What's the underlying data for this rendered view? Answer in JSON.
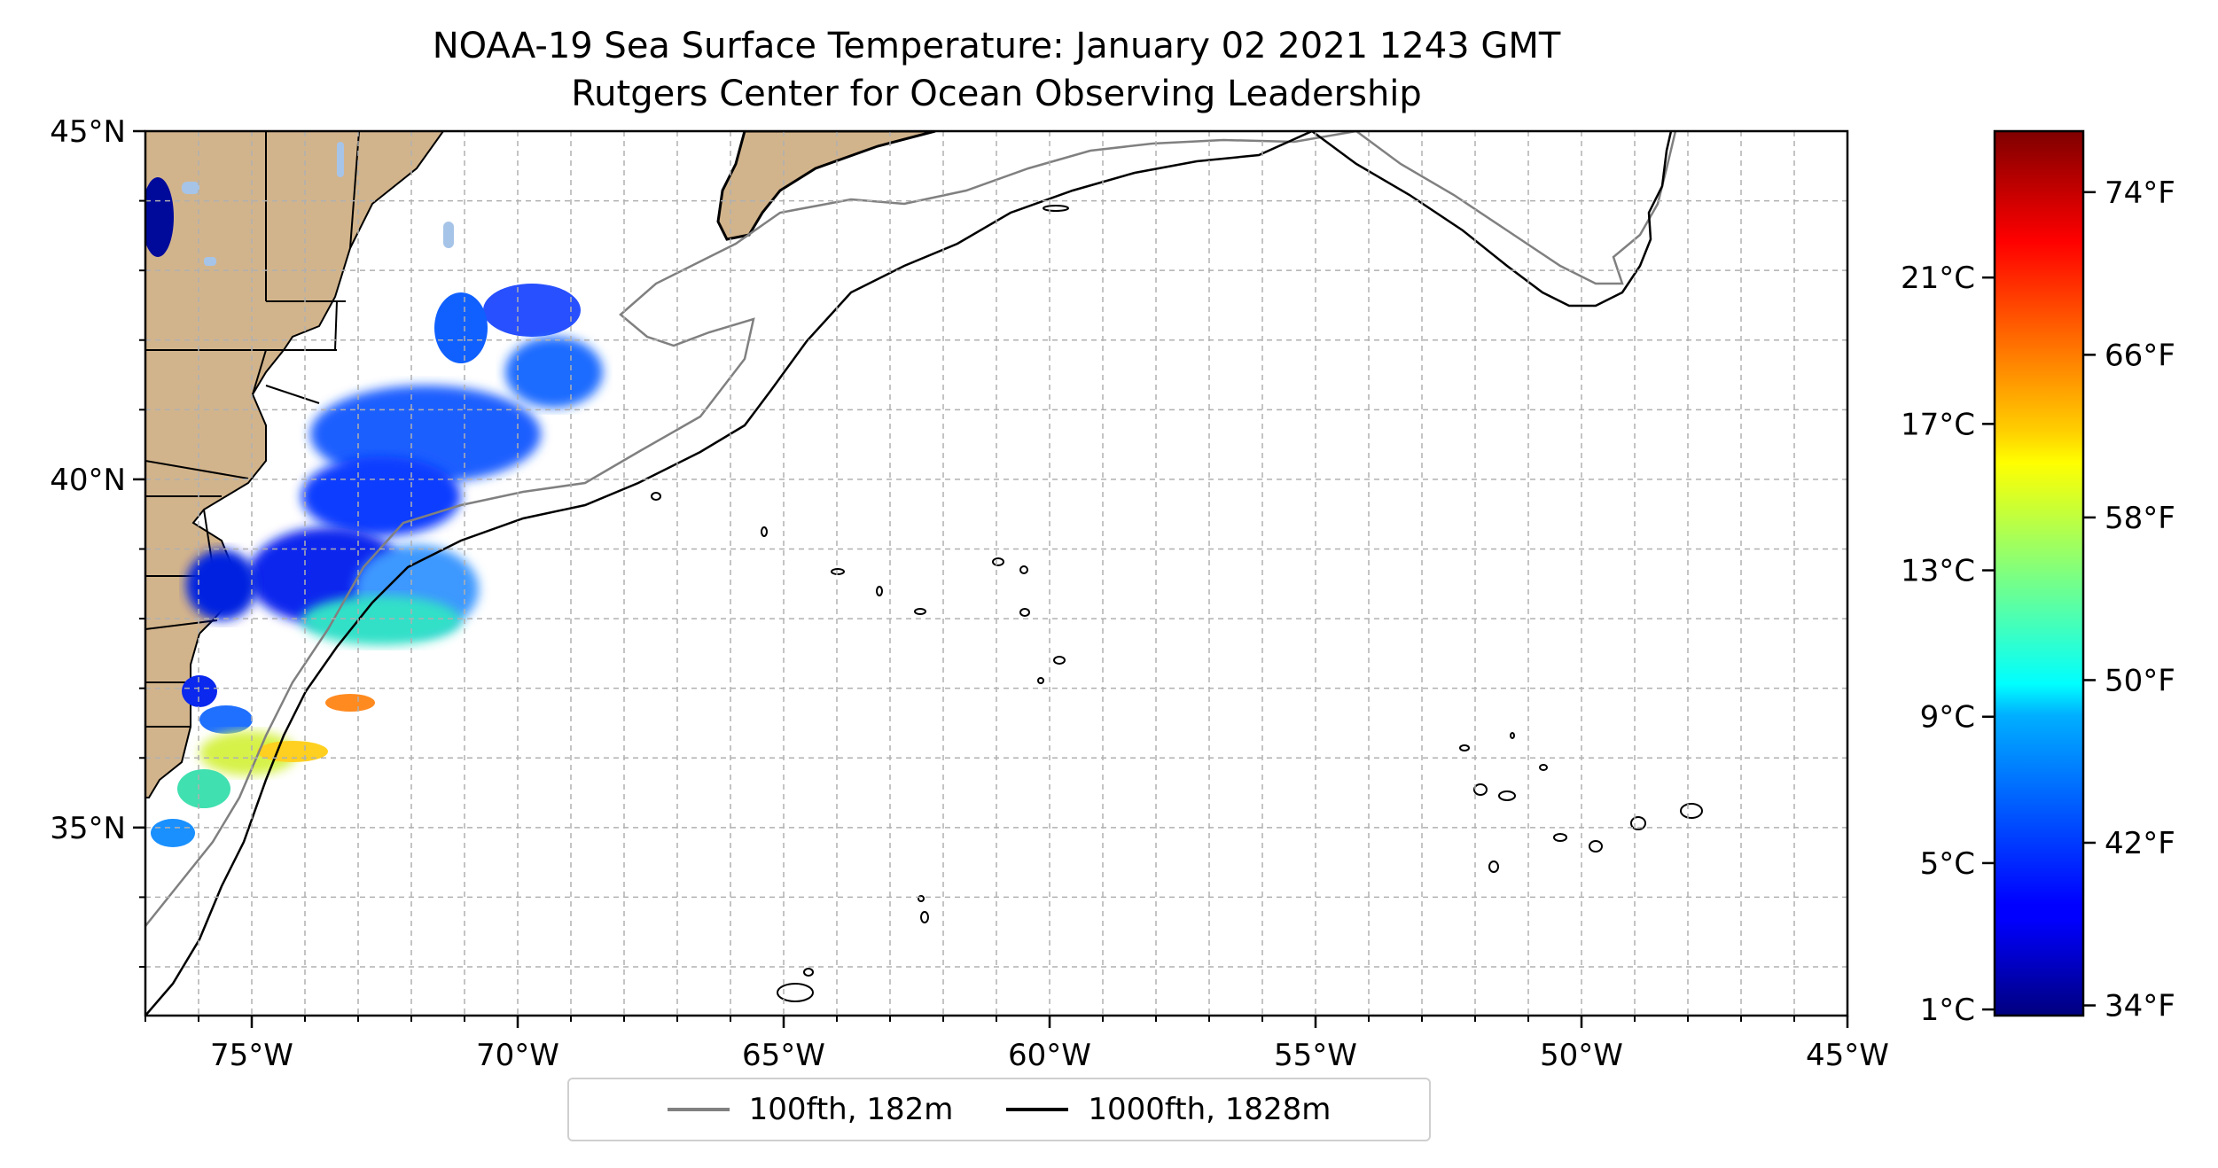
{
  "title": "NOAA-19 Sea Surface Temperature: January 02 2021 1243 GMT",
  "subtitle": "Rutgers Center for Ocean Observing Leadership",
  "map": {
    "extent": {
      "lon_min": -77,
      "lon_max": -45,
      "lat_min": 32.3,
      "lat_max": 45
    },
    "lon_ticks": [
      {
        "lon": -75,
        "label": "75°W"
      },
      {
        "lon": -70,
        "label": "70°W"
      },
      {
        "lon": -65,
        "label": "65°W"
      },
      {
        "lon": -60,
        "label": "60°W"
      },
      {
        "lon": -55,
        "label": "55°W"
      },
      {
        "lon": -50,
        "label": "50°W"
      },
      {
        "lon": -45,
        "label": "45°W"
      }
    ],
    "lat_ticks": [
      {
        "lat": 45,
        "label": "45°N"
      },
      {
        "lat": 40,
        "label": "40°N"
      },
      {
        "lat": 35,
        "label": "35°N"
      }
    ],
    "grid": true,
    "colors": {
      "land": "#d2b48c",
      "lakes": "#a6c4e8",
      "isobath_100": "#808080",
      "isobath_1000": "#000000",
      "grid": "#b0b0b0"
    }
  },
  "colorbar": {
    "colormap": "jet",
    "celsius_ticks": [
      {
        "value": 1,
        "label": "1°C"
      },
      {
        "value": 5,
        "label": "5°C"
      },
      {
        "value": 9,
        "label": "9°C"
      },
      {
        "value": 13,
        "label": "13°C"
      },
      {
        "value": 17,
        "label": "17°C"
      },
      {
        "value": 21,
        "label": "21°C"
      }
    ],
    "fahrenheit_ticks": [
      {
        "value": 34,
        "label": "34°F"
      },
      {
        "value": 42,
        "label": "42°F"
      },
      {
        "value": 50,
        "label": "50°F"
      },
      {
        "value": 58,
        "label": "58°F"
      },
      {
        "value": 66,
        "label": "66°F"
      },
      {
        "value": 74,
        "label": "74°F"
      }
    ],
    "range_f": [
      33.5,
      77
    ]
  },
  "legend": {
    "items": [
      {
        "label": "100fth, 182m",
        "color": "#808080"
      },
      {
        "label": "1000fth, 1828m",
        "color": "#000000"
      }
    ]
  }
}
